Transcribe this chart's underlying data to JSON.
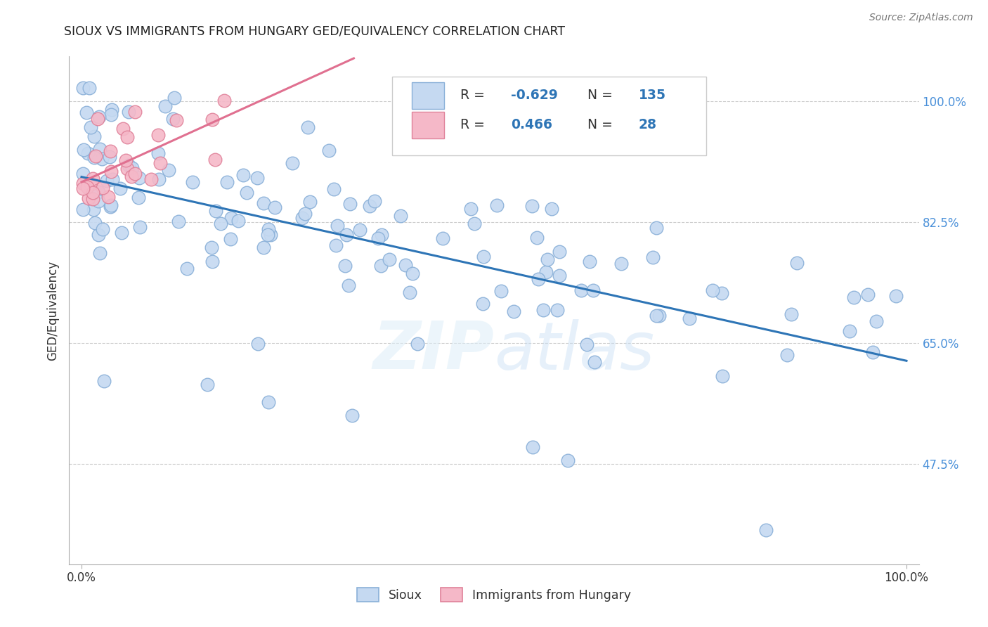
{
  "title": "SIOUX VS IMMIGRANTS FROM HUNGARY GED/EQUIVALENCY CORRELATION CHART",
  "source": "Source: ZipAtlas.com",
  "ylabel": "GED/Equivalency",
  "ytick_labels": [
    "100.0%",
    "82.5%",
    "65.0%",
    "47.5%"
  ],
  "ytick_values": [
    1.0,
    0.825,
    0.65,
    0.475
  ],
  "R_sioux": -0.629,
  "N_sioux": 135,
  "R_hungary": 0.466,
  "N_hungary": 28,
  "sioux_color": "#c5d9f1",
  "sioux_edge": "#8ab0d8",
  "hungary_color": "#f5b8c8",
  "hungary_edge": "#e0829a",
  "trendline_sioux_color": "#2e75b6",
  "trendline_hungary_color": "#e07090",
  "watermark_color": "#ddeeff",
  "background_color": "#ffffff",
  "grid_color": "#cccccc",
  "legend_text_color": "#2e75b6",
  "legend_label_color": "#333333",
  "title_color": "#222222",
  "ytick_color": "#4a90d9",
  "xtick_color": "#333333"
}
